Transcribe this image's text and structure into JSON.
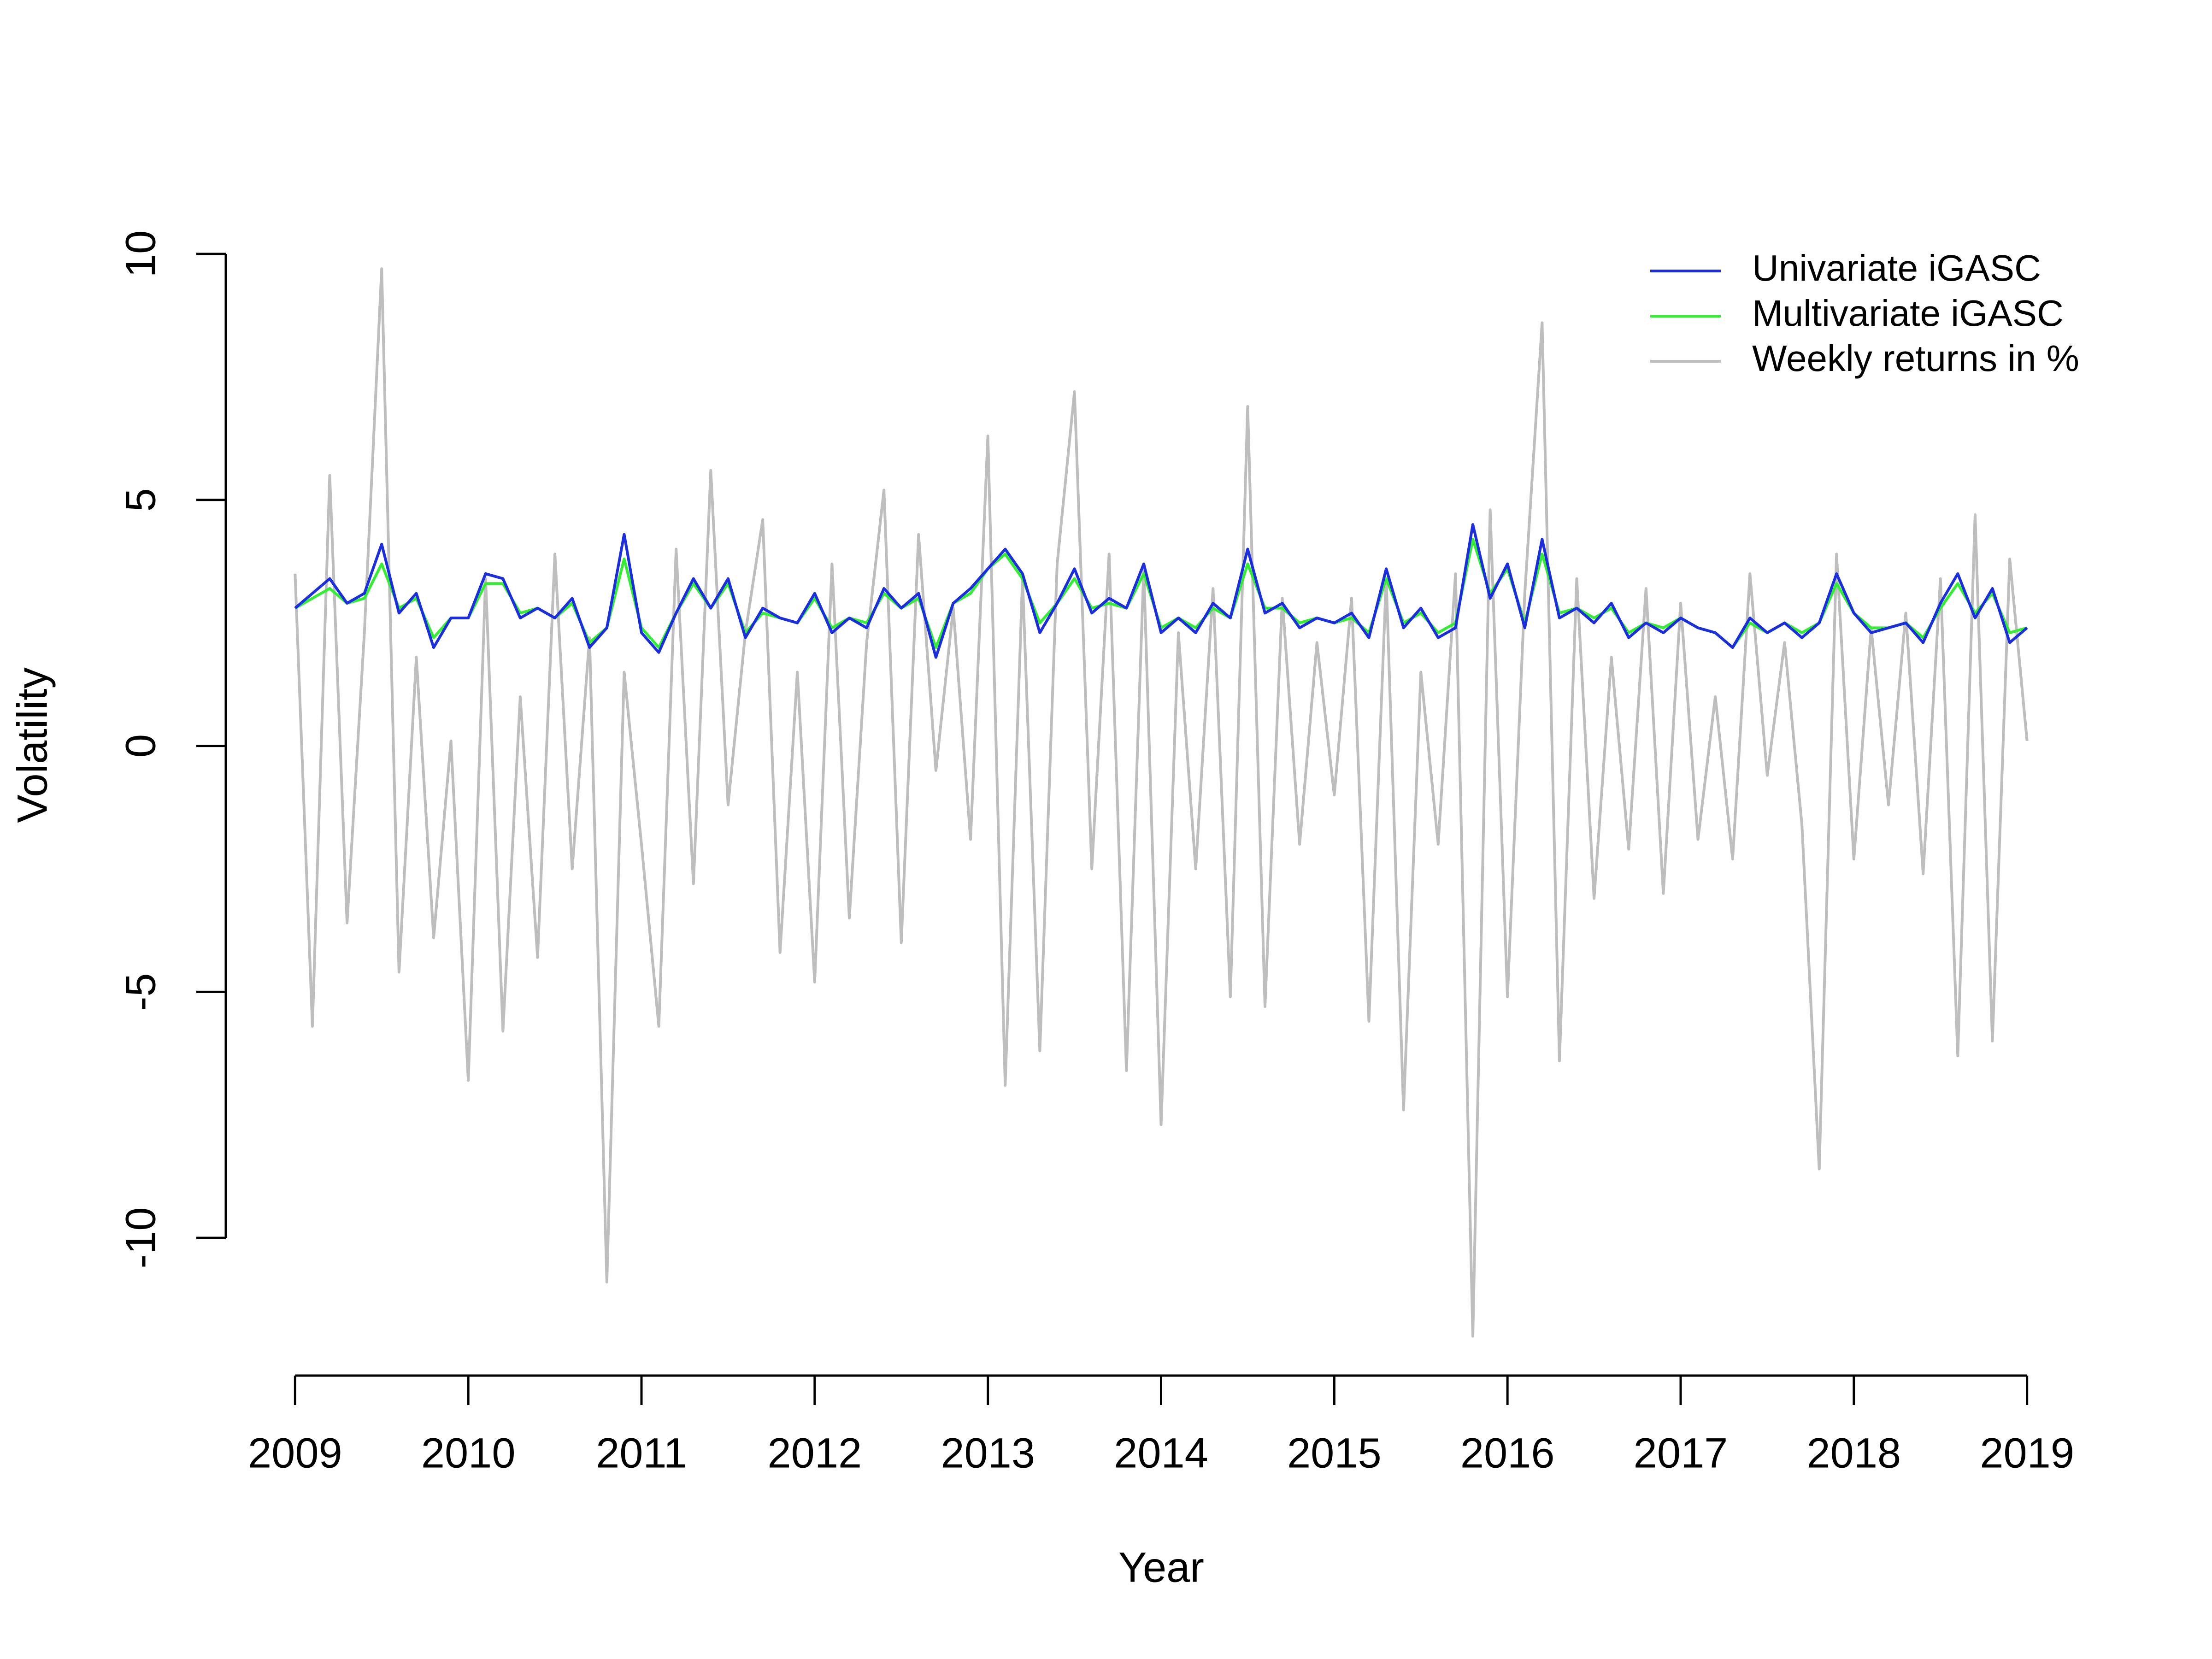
{
  "chart_data": {
    "type": "line",
    "x_label": "Year",
    "y_label": "Volatility",
    "x": [
      2009.0,
      2009.1,
      2009.2,
      2009.3,
      2009.4,
      2009.5,
      2009.6,
      2009.7,
      2009.8,
      2009.9,
      2010.0,
      2010.1,
      2010.2,
      2010.3,
      2010.4,
      2010.5,
      2010.6,
      2010.7,
      2010.8,
      2010.9,
      2011.0,
      2011.1,
      2011.2,
      2011.3,
      2011.4,
      2011.5,
      2011.6,
      2011.7,
      2011.8,
      2011.9,
      2012.0,
      2012.1,
      2012.2,
      2012.3,
      2012.4,
      2012.5,
      2012.6,
      2012.7,
      2012.8,
      2012.9,
      2013.0,
      2013.1,
      2013.2,
      2013.3,
      2013.4,
      2013.5,
      2013.6,
      2013.7,
      2013.8,
      2013.9,
      2014.0,
      2014.1,
      2014.2,
      2014.3,
      2014.4,
      2014.5,
      2014.6,
      2014.7,
      2014.8,
      2014.9,
      2015.0,
      2015.1,
      2015.2,
      2015.3,
      2015.4,
      2015.5,
      2015.6,
      2015.7,
      2015.8,
      2015.9,
      2016.0,
      2016.1,
      2016.2,
      2016.3,
      2016.4,
      2016.5,
      2016.6,
      2016.7,
      2016.8,
      2016.9,
      2017.0,
      2017.1,
      2017.2,
      2017.3,
      2017.4,
      2017.5,
      2017.6,
      2017.7,
      2017.8,
      2017.9,
      2018.0,
      2018.1,
      2018.2,
      2018.3,
      2018.4,
      2018.5,
      2018.6,
      2018.7,
      2018.8,
      2018.9,
      2019.0
    ],
    "series": [
      {
        "name": "Univariate iGASC",
        "color": "#1a2ee0",
        "values": [
          2.8,
          3.1,
          3.4,
          2.9,
          3.1,
          4.1,
          2.7,
          3.1,
          2.0,
          2.6,
          2.6,
          3.5,
          3.4,
          2.6,
          2.8,
          2.6,
          3.0,
          2.0,
          2.4,
          4.3,
          2.3,
          1.9,
          2.7,
          3.4,
          2.8,
          3.4,
          2.2,
          2.8,
          2.6,
          2.5,
          3.1,
          2.3,
          2.6,
          2.4,
          3.2,
          2.8,
          3.1,
          1.8,
          2.9,
          3.2,
          3.6,
          4.0,
          3.5,
          2.3,
          2.9,
          3.6,
          2.7,
          3.0,
          2.8,
          3.7,
          2.3,
          2.6,
          2.3,
          2.9,
          2.6,
          4.0,
          2.7,
          2.9,
          2.4,
          2.6,
          2.5,
          2.7,
          2.2,
          3.6,
          2.4,
          2.8,
          2.2,
          2.4,
          4.5,
          3.0,
          3.7,
          2.4,
          4.2,
          2.6,
          2.8,
          2.5,
          2.9,
          2.2,
          2.5,
          2.3,
          2.6,
          2.4,
          2.3,
          2.0,
          2.6,
          2.3,
          2.5,
          2.2,
          2.5,
          3.5,
          2.7,
          2.3,
          2.4,
          2.5,
          2.1,
          2.9,
          3.5,
          2.6,
          3.2,
          2.1,
          2.4
        ]
      },
      {
        "name": "Multivariate iGASC",
        "color": "#33ee33",
        "values": [
          2.8,
          3.0,
          3.2,
          2.9,
          3.0,
          3.7,
          2.8,
          3.0,
          2.2,
          2.6,
          2.6,
          3.3,
          3.3,
          2.7,
          2.8,
          2.6,
          2.9,
          2.1,
          2.4,
          3.8,
          2.4,
          2.0,
          2.7,
          3.3,
          2.8,
          3.3,
          2.3,
          2.7,
          2.6,
          2.5,
          3.0,
          2.4,
          2.6,
          2.5,
          3.1,
          2.8,
          3.0,
          2.0,
          2.9,
          3.1,
          3.6,
          3.9,
          3.4,
          2.5,
          2.9,
          3.4,
          2.8,
          2.9,
          2.8,
          3.5,
          2.4,
          2.6,
          2.4,
          2.8,
          2.6,
          3.7,
          2.8,
          2.8,
          2.5,
          2.6,
          2.5,
          2.6,
          2.3,
          3.4,
          2.5,
          2.7,
          2.3,
          2.5,
          4.2,
          3.1,
          3.6,
          2.5,
          3.9,
          2.7,
          2.8,
          2.6,
          2.8,
          2.3,
          2.5,
          2.4,
          2.6,
          2.4,
          2.3,
          2.0,
          2.5,
          2.3,
          2.5,
          2.3,
          2.5,
          3.3,
          2.7,
          2.4,
          2.4,
          2.5,
          2.2,
          2.8,
          3.3,
          2.7,
          3.1,
          2.3,
          2.4
        ]
      },
      {
        "name": "Weekly returns in %",
        "color": "#bebebe",
        "values": [
          3.5,
          -5.7,
          5.5,
          -3.6,
          2.3,
          9.7,
          -4.6,
          1.8,
          -3.9,
          0.1,
          -6.8,
          3.4,
          -5.8,
          1.0,
          -4.3,
          3.9,
          -2.5,
          2.2,
          -10.9,
          1.5,
          -2.0,
          -5.7,
          4.0,
          -2.8,
          5.6,
          -1.2,
          2.3,
          4.6,
          -4.2,
          1.5,
          -4.8,
          3.7,
          -3.5,
          2.1,
          5.2,
          -4.0,
          4.3,
          -0.5,
          2.8,
          -1.9,
          6.3,
          -6.9,
          3.4,
          -6.2,
          3.7,
          7.2,
          -2.5,
          3.9,
          -6.6,
          3.6,
          -7.7,
          2.3,
          -2.5,
          3.2,
          -5.1,
          6.9,
          -5.3,
          3.0,
          -2.0,
          2.1,
          -1.0,
          3.0,
          -5.6,
          3.4,
          -7.4,
          1.5,
          -2.0,
          3.5,
          -12.0,
          4.8,
          -5.1,
          3.1,
          8.6,
          -6.4,
          3.4,
          -3.1,
          1.8,
          -2.1,
          3.2,
          -3.0,
          2.9,
          -1.9,
          1.0,
          -2.3,
          3.5,
          -0.6,
          2.1,
          -1.6,
          -8.6,
          3.9,
          -2.3,
          2.4,
          -1.2,
          2.7,
          -2.6,
          3.4,
          -6.3,
          4.7,
          -6.0,
          3.8,
          0.1
        ]
      }
    ],
    "xlim": [
      2008.6,
      2019.4
    ],
    "xticks": [
      2009,
      2010,
      2011,
      2012,
      2013,
      2014,
      2015,
      2016,
      2017,
      2018,
      2019
    ],
    "ylim": [
      -12.8,
      10.6
    ],
    "yticks": [
      -10,
      -5,
      0,
      5,
      10
    ],
    "legend": "topright"
  }
}
